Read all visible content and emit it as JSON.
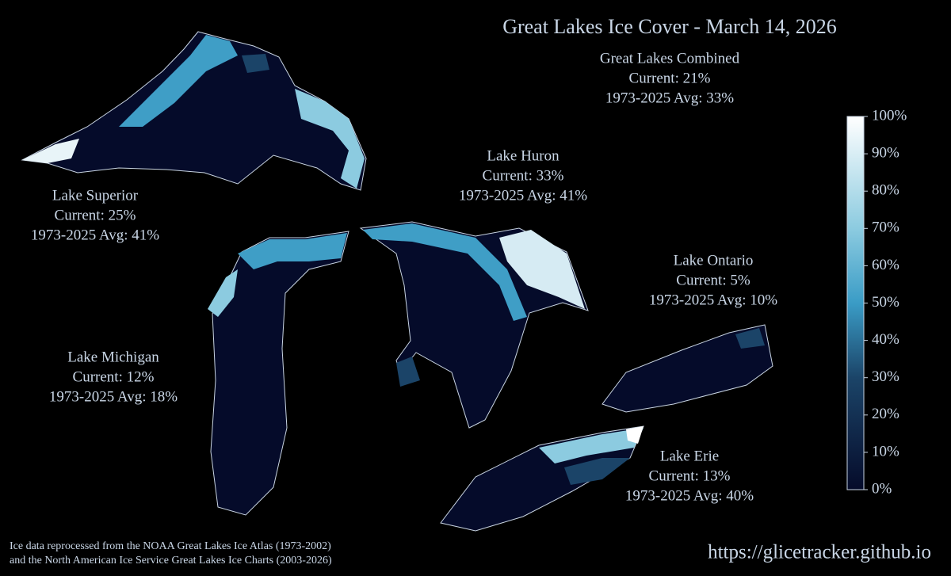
{
  "title": "Great Lakes Ice Cover - March 14, 2026",
  "lakes": [
    {
      "name": "Great Lakes Combined",
      "current": "Current: 21%",
      "average": "1973-2025 Avg: 33%"
    },
    {
      "name": "Lake Superior",
      "current": "Current: 25%",
      "average": "1973-2025 Avg: 41%"
    },
    {
      "name": "Lake Huron",
      "current": "Current: 33%",
      "average": "1973-2025 Avg: 41%"
    },
    {
      "name": "Lake Ontario",
      "current": "Current: 5%",
      "average": "1973-2025 Avg: 10%"
    },
    {
      "name": "Lake Michigan",
      "current": "Current: 12%",
      "average": "1973-2025 Avg: 18%"
    },
    {
      "name": "Lake Erie",
      "current": "Current: 13%",
      "average": "1973-2025 Avg: 40%"
    }
  ],
  "colorbar": {
    "range": [
      0,
      100
    ],
    "ticks": [
      {
        "value": 0,
        "label": "0%"
      },
      {
        "value": 10,
        "label": "10%"
      },
      {
        "value": 20,
        "label": "20%"
      },
      {
        "value": 30,
        "label": "30%"
      },
      {
        "value": 40,
        "label": "40%"
      },
      {
        "value": 50,
        "label": "50%"
      },
      {
        "value": 60,
        "label": "60%"
      },
      {
        "value": 70,
        "label": "70%"
      },
      {
        "value": 80,
        "label": "80%"
      },
      {
        "value": 90,
        "label": "90%"
      },
      {
        "value": 100,
        "label": "100%"
      }
    ]
  },
  "footnote": [
    "Ice data reprocessed from the NOAA Great Lakes Ice Atlas (1973-2002)",
    "and the North American Ice Service Great Lakes Ice Charts (2003-2026)"
  ],
  "url": "https://glicetracker.github.io"
}
